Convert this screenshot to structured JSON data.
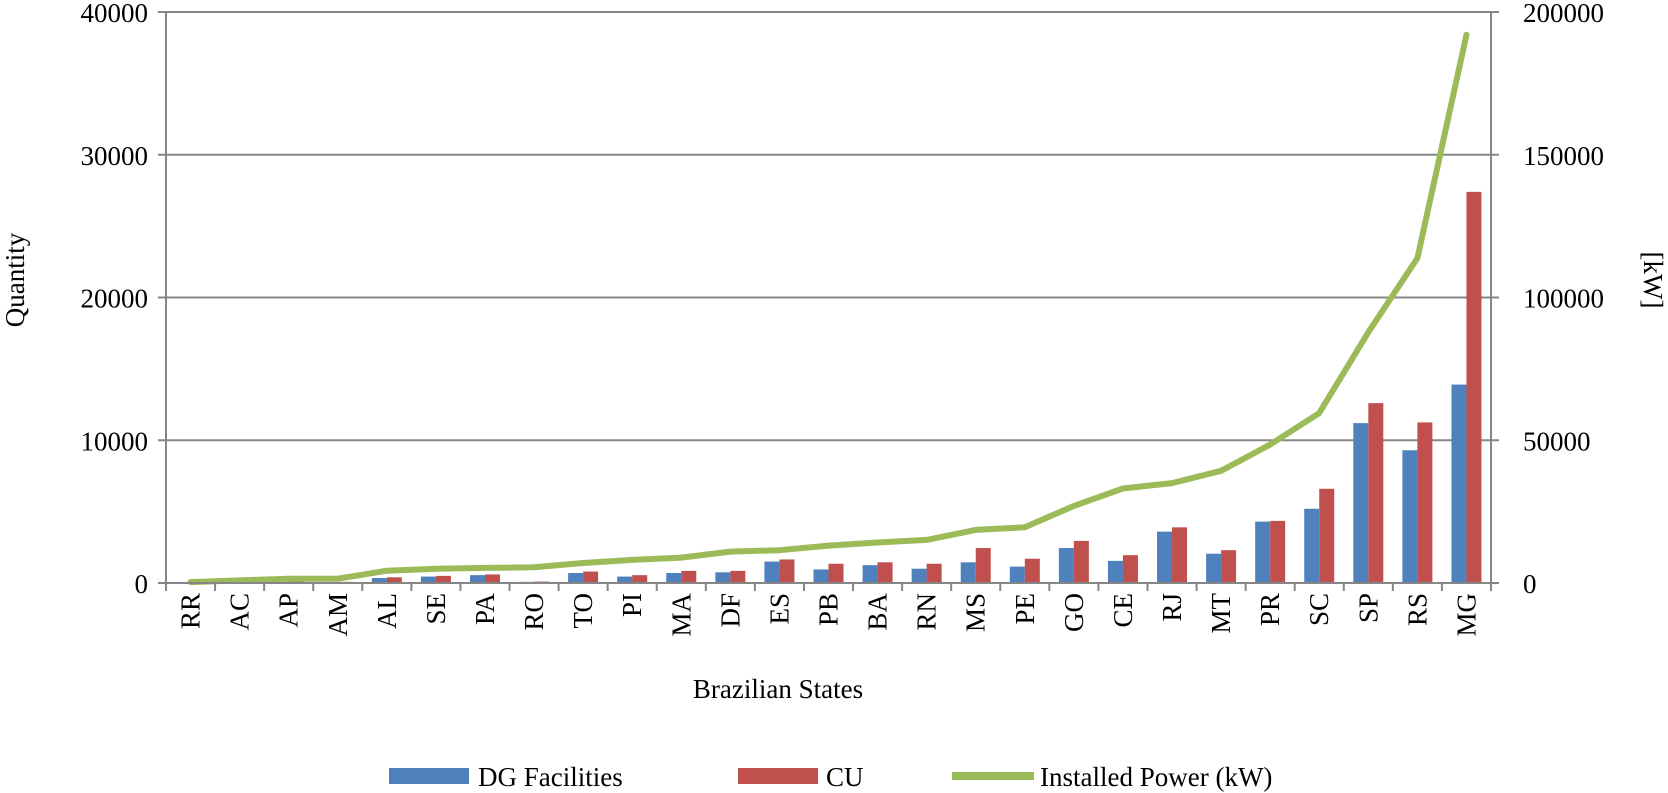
{
  "chart_data": {
    "type": "bar",
    "xlabel": "Brazilian States",
    "ylabel": "Quantity",
    "y2label": "[kW]",
    "ylim": [
      0,
      40000
    ],
    "y2lim": [
      0,
      200000
    ],
    "yticks": [
      "0",
      "10000",
      "20000",
      "30000",
      "40000"
    ],
    "y2ticks": [
      "0",
      "50000",
      "100000",
      "150000",
      "200000"
    ],
    "grid": true,
    "legend_position": "bottom",
    "categories": [
      "RR",
      "AC",
      "AP",
      "AM",
      "AL",
      "SE",
      "PA",
      "RO",
      "TO",
      "PI",
      "MA",
      "DF",
      "ES",
      "PB",
      "BA",
      "RN",
      "MS",
      "PE",
      "GO",
      "CE",
      "RJ",
      "MT",
      "PR",
      "SC",
      "SP",
      "RS",
      "MG"
    ],
    "series": [
      {
        "name": "DG Facilities",
        "type": "bar",
        "axis": "left",
        "color": "#4f81bd",
        "values": [
          30,
          40,
          80,
          50,
          350,
          450,
          550,
          80,
          700,
          450,
          700,
          750,
          1500,
          950,
          1250,
          1000,
          1450,
          1150,
          2450,
          1550,
          3600,
          2050,
          4300,
          5200,
          11200,
          9300,
          13900
        ]
      },
      {
        "name": "CU",
        "type": "bar",
        "axis": "left",
        "color": "#c0504d",
        "values": [
          40,
          60,
          110,
          80,
          400,
          500,
          600,
          100,
          800,
          550,
          850,
          850,
          1650,
          1350,
          1450,
          1350,
          2450,
          1700,
          2950,
          1950,
          3900,
          2300,
          4350,
          6600,
          12600,
          11250,
          27400
        ]
      },
      {
        "name": "Installed Power (kW)",
        "type": "line",
        "axis": "right",
        "color": "#9bbb59",
        "values": [
          300,
          900,
          1500,
          1500,
          4300,
          5000,
          5300,
          5500,
          7000,
          8100,
          8900,
          11000,
          11500,
          13100,
          14200,
          15100,
          18600,
          19500,
          27000,
          33100,
          35000,
          39300,
          48500,
          59500,
          87800,
          113800,
          192000
        ]
      }
    ]
  }
}
